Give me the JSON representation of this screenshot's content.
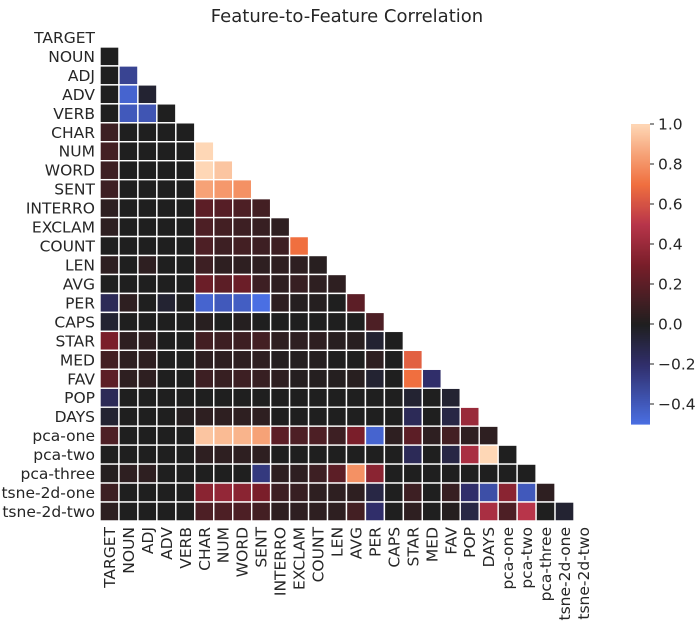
{
  "chart_data": {
    "type": "heatmap",
    "title": "Feature-to-Feature Correlation",
    "xlabel": "",
    "ylabel": "",
    "mask": "upper-triangle-including-diagonal",
    "grid": false,
    "legend": "colorbar-right",
    "colorbar": {
      "vmin": -0.5,
      "vmax": 1.0,
      "center": 0.0,
      "ticks": [
        -0.4,
        -0.2,
        0.0,
        0.2,
        0.4,
        0.6,
        0.8,
        1.0
      ],
      "tick_labels": [
        "−0.4",
        "−0.2",
        "0.0",
        "0.2",
        "0.4",
        "0.6",
        "0.8",
        "1.0"
      ],
      "colors": {
        "negative_end": "#4a6fe3",
        "center": "#1f1f1f",
        "positive_end": "#fed7b6"
      }
    },
    "row_labels": [
      "TARGET",
      "NOUN",
      "ADJ",
      "ADV",
      "VERB",
      "CHAR",
      "NUM",
      "WORD",
      "SENT",
      "INTERRO",
      "EXCLAM",
      "COUNT",
      "LEN",
      "AVG",
      "PER",
      "CAPS",
      "STAR",
      "MED",
      "FAV",
      "POP",
      "DAYS",
      "pca-one",
      "pca-two",
      "pca-three",
      "tsne-2d-one",
      "tsne-2d-two"
    ],
    "col_labels": [
      "TARGET",
      "NOUN",
      "ADJ",
      "ADV",
      "VERB",
      "CHAR",
      "NUM",
      "WORD",
      "SENT",
      "INTERRO",
      "EXCLAM",
      "COUNT",
      "LEN",
      "AVG",
      "PER",
      "CAPS",
      "STAR",
      "MED",
      "FAV",
      "POP",
      "DAYS",
      "pca-one",
      "pca-two",
      "pca-three",
      "tsne-2d-one",
      "tsne-2d-two"
    ],
    "values": [
      [],
      [
        0.0
      ],
      [
        0.0,
        -0.3
      ],
      [
        0.0,
        -0.45,
        -0.05
      ],
      [
        0.0,
        -0.4,
        -0.38,
        0.0
      ],
      [
        0.1,
        0.0,
        0.0,
        0.0,
        0.0
      ],
      [
        0.12,
        0.0,
        0.0,
        0.0,
        0.0,
        1.0
      ],
      [
        0.1,
        0.0,
        0.0,
        0.0,
        0.0,
        1.0,
        0.95
      ],
      [
        0.1,
        0.0,
        0.0,
        0.0,
        0.0,
        0.85,
        0.82,
        0.8
      ],
      [
        0.05,
        0.0,
        0.0,
        0.0,
        0.0,
        0.2,
        0.18,
        0.15,
        0.12
      ],
      [
        0.05,
        0.0,
        0.0,
        0.0,
        0.0,
        0.15,
        0.12,
        0.1,
        0.08,
        0.05
      ],
      [
        0.0,
        0.0,
        0.0,
        0.0,
        0.0,
        0.15,
        0.1,
        0.12,
        0.1,
        0.1,
        0.7
      ],
      [
        0.05,
        0.0,
        0.05,
        0.0,
        0.0,
        0.1,
        0.05,
        0.05,
        0.05,
        0.05,
        0.05,
        0.03
      ],
      [
        0.0,
        0.0,
        0.0,
        0.0,
        0.0,
        0.25,
        0.2,
        0.25,
        0.1,
        0.05,
        0.08,
        0.05,
        0.05
      ],
      [
        -0.15,
        0.05,
        0.0,
        -0.05,
        0.0,
        -0.45,
        -0.4,
        -0.42,
        -0.5,
        0.05,
        0.02,
        0.02,
        0.0,
        0.2
      ],
      [
        -0.05,
        0.0,
        0.0,
        0.0,
        0.0,
        0.03,
        0.0,
        0.02,
        0.0,
        0.0,
        0.0,
        0.0,
        0.0,
        0.0,
        0.15
      ],
      [
        0.3,
        0.05,
        0.05,
        0.0,
        0.0,
        0.12,
        0.1,
        0.1,
        0.12,
        0.05,
        0.05,
        0.05,
        0.03,
        0.03,
        -0.05,
        0.0
      ],
      [
        0.12,
        0.05,
        0.05,
        0.0,
        0.0,
        0.05,
        0.05,
        0.05,
        0.05,
        0.02,
        0.02,
        0.02,
        0.0,
        0.0,
        0.05,
        0.0,
        0.65
      ],
      [
        0.2,
        0.05,
        0.05,
        0.0,
        0.0,
        0.1,
        0.08,
        0.1,
        0.08,
        0.05,
        0.02,
        0.02,
        0.02,
        0.03,
        -0.05,
        0.0,
        0.7,
        -0.2
      ],
      [
        -0.15,
        0.0,
        0.0,
        0.0,
        0.0,
        0.0,
        0.0,
        0.0,
        0.0,
        0.0,
        0.0,
        0.0,
        0.0,
        0.0,
        0.0,
        0.0,
        -0.05,
        0.0,
        -0.05
      ],
      [
        -0.05,
        0.0,
        0.0,
        0.0,
        0.02,
        0.05,
        0.05,
        0.05,
        0.05,
        0.0,
        0.0,
        0.0,
        0.0,
        0.0,
        0.0,
        0.0,
        -0.15,
        0.0,
        -0.1,
        0.4
      ],
      [
        0.15,
        0.0,
        0.0,
        0.0,
        0.0,
        0.95,
        0.92,
        0.9,
        0.85,
        0.2,
        0.15,
        0.15,
        0.1,
        0.3,
        -0.45,
        0.05,
        0.2,
        0.05,
        0.12,
        0.05,
        0.05
      ],
      [
        0.0,
        0.0,
        0.0,
        0.0,
        0.0,
        0.05,
        0.05,
        0.05,
        0.05,
        0.0,
        0.0,
        0.0,
        0.0,
        0.0,
        0.0,
        0.0,
        -0.15,
        0.0,
        -0.1,
        0.45,
        1.0,
        0.0
      ],
      [
        0.02,
        0.05,
        0.05,
        0.0,
        0.0,
        0.0,
        0.0,
        0.0,
        -0.25,
        0.05,
        0.05,
        0.1,
        0.2,
        0.8,
        0.35,
        0.0,
        0.0,
        0.0,
        0.0,
        0.0,
        0.0,
        0.0,
        0.0
      ],
      [
        0.1,
        0.0,
        0.0,
        0.0,
        0.0,
        0.35,
        0.38,
        0.35,
        0.3,
        0.1,
        0.08,
        0.05,
        0.05,
        0.05,
        -0.1,
        0.0,
        0.1,
        0.0,
        0.08,
        -0.2,
        -0.35,
        0.35,
        -0.4,
        0.05
      ],
      [
        0.05,
        0.0,
        0.0,
        0.0,
        0.0,
        0.15,
        0.15,
        0.15,
        0.12,
        0.05,
        0.05,
        0.05,
        0.05,
        0.12,
        -0.2,
        0.0,
        0.05,
        0.0,
        0.02,
        -0.1,
        0.45,
        0.15,
        0.5,
        0.0,
        -0.05
      ]
    ]
  }
}
